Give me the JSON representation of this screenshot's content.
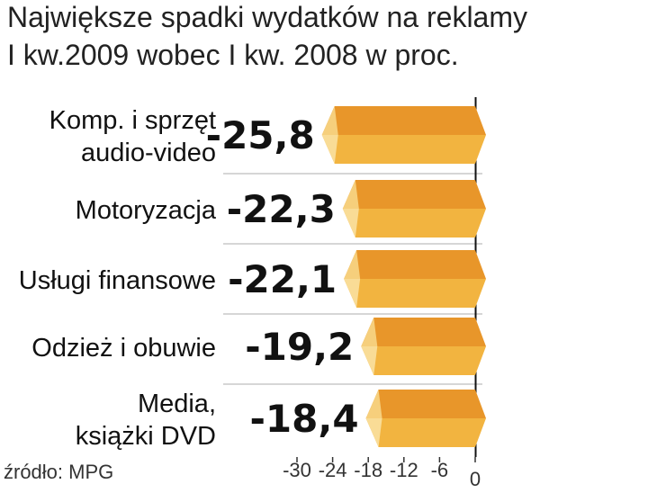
{
  "chart_data": {
    "type": "bar",
    "orientation": "horizontal",
    "title_lines": [
      "Największe spadki wydatków na reklamy",
      "I kw.2009 wobec I kw. 2008 w proc."
    ],
    "categories": [
      [
        "Komp. i sprzęt",
        "audio-video"
      ],
      [
        "Motoryzacja"
      ],
      [
        "Usługi finansowe"
      ],
      [
        "Odzież i obuwie"
      ],
      [
        "Media,",
        "książki DVD"
      ]
    ],
    "values": [
      -25.8,
      -22.3,
      -22.1,
      -19.2,
      -18.4
    ],
    "value_labels": [
      "-25,8",
      "-22,3",
      "-22,1",
      "-19,2",
      "-18,4"
    ],
    "highlight_index": 0,
    "x_ticks": [
      -30,
      -24,
      -18,
      -12,
      -6,
      0
    ],
    "x_tick_labels": [
      "-30",
      "-24",
      "-18",
      "-12",
      "-6",
      "0"
    ],
    "xlim": [
      -30,
      0
    ],
    "source": "źródło: MPG",
    "grid": false,
    "colors": {
      "bar_top": "#e8962a",
      "bar_bottom": "#f2b440",
      "bar_cap_top": "#f6cf7c",
      "bar_cap_bottom": "#f9dc96",
      "highlight_text": "#c8133f",
      "text": "#111111",
      "separator": "#c8c8c8"
    }
  }
}
